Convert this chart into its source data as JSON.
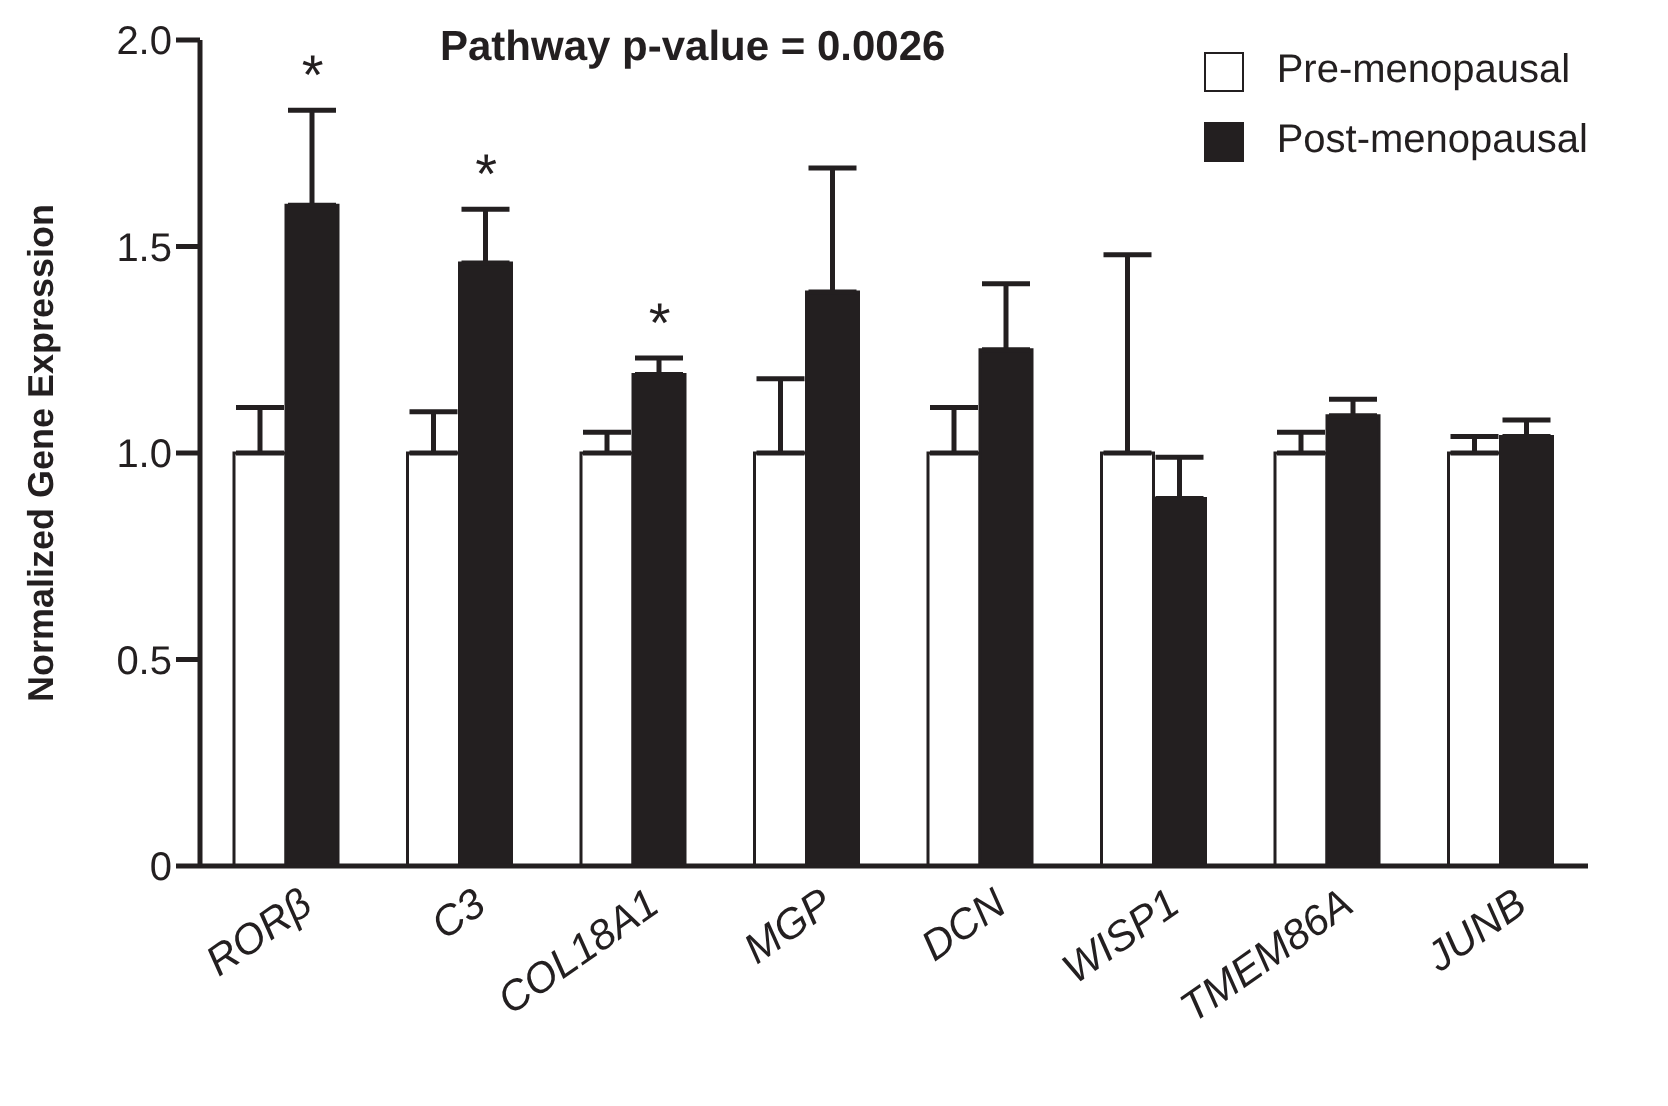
{
  "chart_data": {
    "type": "bar",
    "title": "Pathway p-value = 0.0026",
    "ylabel": "Normalized Gene Expression",
    "categories": [
      "RORβ",
      "C3",
      "COL18A1",
      "MGP",
      "DCN",
      "WISP1",
      "TMEM86A",
      "JUNB"
    ],
    "series": [
      {
        "name": "Pre-menopausal",
        "color": "#ffffff",
        "values": [
          1.0,
          1.0,
          1.0,
          1.0,
          1.0,
          1.0,
          1.0,
          1.0
        ],
        "errors": [
          [
            1.0,
            1.11
          ],
          [
            1.0,
            1.1
          ],
          [
            1.0,
            1.05
          ],
          [
            1.0,
            1.18
          ],
          [
            1.0,
            1.11
          ],
          [
            1.0,
            1.48
          ],
          [
            1.0,
            1.05
          ],
          [
            1.0,
            1.04
          ]
        ]
      },
      {
        "name": "Post-menopausal",
        "color": "#231f20",
        "values": [
          1.6,
          1.46,
          1.19,
          1.39,
          1.25,
          0.89,
          1.09,
          1.04
        ],
        "errors": [
          [
            1.6,
            1.83
          ],
          [
            1.46,
            1.59
          ],
          [
            1.19,
            1.23
          ],
          [
            1.39,
            1.69
          ],
          [
            1.25,
            1.41
          ],
          [
            0.89,
            0.99
          ],
          [
            1.09,
            1.13
          ],
          [
            1.04,
            1.08
          ]
        ]
      }
    ],
    "annotations": [
      {
        "text": "*",
        "x": "RORβ",
        "y": 1.83
      },
      {
        "text": "*",
        "x": "C3",
        "y": 1.59
      },
      {
        "text": "*",
        "x": "COL18A1",
        "y": 1.23
      }
    ],
    "ylim": [
      0,
      2.0
    ],
    "yticks": [
      0,
      0.5,
      {
        "value": 1.0,
        "label": "1.0"
      },
      {
        "value": 1.5,
        "label": "1.5"
      },
      {
        "value": 2.0,
        "label": "2.0"
      }
    ],
    "grid": false,
    "legend": "top right"
  }
}
